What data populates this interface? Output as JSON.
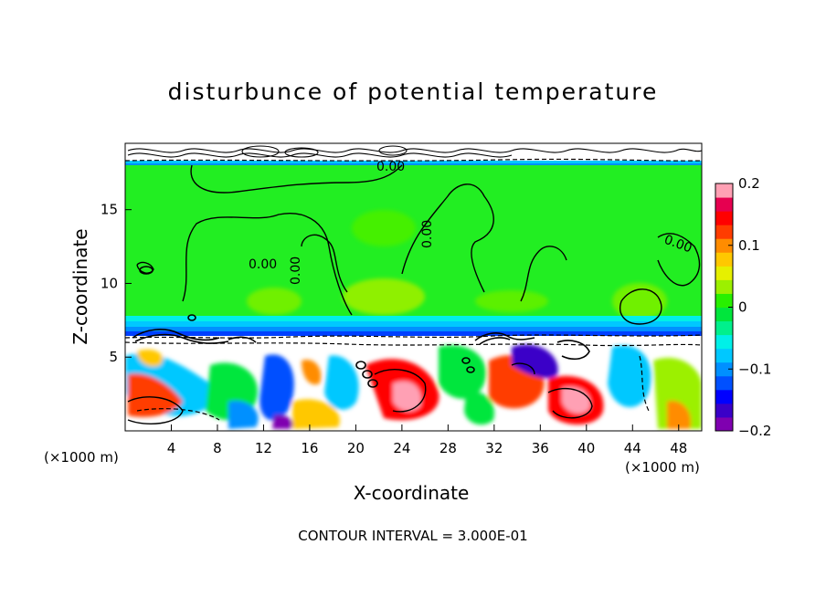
{
  "chart_data": {
    "type": "heatmap",
    "title": "disturbunce of potential temperature",
    "xlabel": "X-coordinate",
    "ylabel": "Z-coordinate",
    "x_unit_left": "(×1000 m)",
    "x_unit_right": "(×1000 m)",
    "footnote": "CONTOUR INTERVAL = 3.000E-01",
    "xlim": [
      0,
      50
    ],
    "ylim": [
      0,
      19.5
    ],
    "x_ticks": [
      4,
      8,
      12,
      16,
      20,
      24,
      28,
      32,
      36,
      40,
      44,
      48
    ],
    "y_ticks": [
      5,
      10,
      15
    ],
    "colorbar": {
      "range": [
        -0.2,
        0.2
      ],
      "ticks": [
        0.2,
        0.1,
        0,
        -0.1,
        -0.2
      ],
      "tick_labels": [
        "0.2",
        "0.1",
        "0",
        "−0.1",
        "−0.2"
      ],
      "colors": [
        "#7f00b0",
        "#3a00c8",
        "#0000ff",
        "#0050ff",
        "#0090ff",
        "#00c8ff",
        "#00f0e8",
        "#00f08c",
        "#00e63c",
        "#28f000",
        "#9cf000",
        "#e6f000",
        "#ffc800",
        "#ff8c00",
        "#ff3c00",
        "#ff0000",
        "#e60050",
        "#ffa0b4"
      ]
    },
    "contour_labels": [
      "0.00",
      "0.00",
      "0.00",
      "0.00",
      "0.00"
    ],
    "fields": {
      "upper_layer_value": 0,
      "boundary_layer_top": 6.5,
      "stratosphere_base": 18.6
    }
  }
}
